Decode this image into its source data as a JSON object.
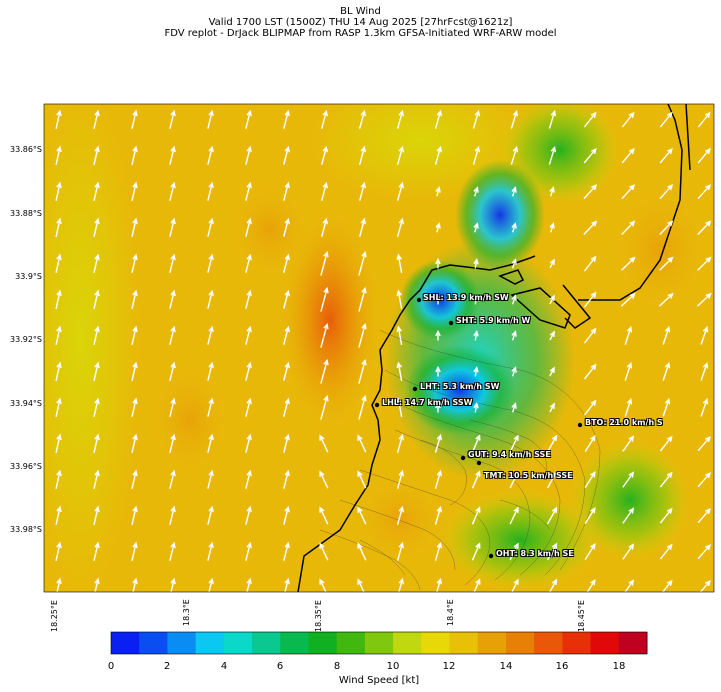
{
  "header": {
    "title": "BL Wind",
    "valid_line": "Valid 1700 LST (1500Z) THU 14 Aug 2025 [27hrFcst@1621z]",
    "model_line": "FDV replot - DrJack BLIPMAP from RASP 1.3km GFSA-Initiated WRF-ARW model"
  },
  "map": {
    "lat_labels": [
      "33.86°S",
      "33.88°S",
      "33.9°S",
      "33.92°S",
      "33.94°S",
      "33.96°S",
      "33.98°S"
    ],
    "lon_labels": [
      "18.25°E",
      "18.3°E",
      "18.35°E",
      "18.4°E",
      "18.45°E"
    ],
    "stations": [
      {
        "code": "SHL",
        "label": "SHL: 13.9 km/h SW"
      },
      {
        "code": "SHT",
        "label": "SHT: 5.9 km/h W"
      },
      {
        "code": "LHT",
        "label": "LHT: 5.3 km/h SW"
      },
      {
        "code": "LHL",
        "label": "LHL: 14.7 km/h SSW"
      },
      {
        "code": "BTO",
        "label": "BTO: 21.0 km/h S"
      },
      {
        "code": "GUT",
        "label": "GUT: 9.4 km/h SSE"
      },
      {
        "code": "TMT",
        "label": "TMT: 10.5 km/h SSE"
      },
      {
        "code": "OHT",
        "label": "OHT: 8.3 km/h SE"
      }
    ]
  },
  "colorbar": {
    "label": "Wind Speed [kt]",
    "ticks": [
      "0",
      "2",
      "4",
      "6",
      "8",
      "10",
      "12",
      "14",
      "16",
      "18"
    ],
    "range": [
      0,
      19
    ],
    "colors": [
      "#0a1ff2",
      "#0a4ef2",
      "#0a8cf2",
      "#0ac8f2",
      "#0ad8c8",
      "#0ac890",
      "#0ab850",
      "#10b020",
      "#40b810",
      "#80c810",
      "#c0d810",
      "#e8d808",
      "#e8c008",
      "#e8a008",
      "#e88008",
      "#e85808",
      "#e83008",
      "#e00808",
      "#c00020"
    ]
  }
}
